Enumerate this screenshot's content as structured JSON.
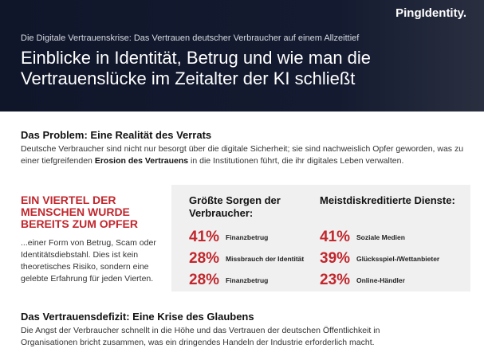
{
  "header": {
    "logo": "PingIdentity.",
    "subtitle": "Die Digitale Vertrauenskrise: Das Vertrauen deutscher Verbraucher auf einem Allzeittief",
    "title_lines": [
      "Einblicke in Identität, Betrug und wie man die",
      "Vertrauenslücke im Zeitalter der KI schließt"
    ]
  },
  "problem": {
    "heading": "Das Problem: Eine Realität des Verrats",
    "text_before": "Deutsche Verbraucher sind nicht nur besorgt über die digitale Sicherheit; sie sind nachweislich Opfer geworden, was zu einer tiefgreifenden ",
    "text_bold": "Erosion des Vertrauens",
    "text_after": " in die Institutionen führt, die ihr digitales Leben verwalten."
  },
  "callout": {
    "headline": "EIN VIERTEL DER MENSCHEN WURDE BEREITS ZUM OPFER",
    "text": "...einer Form von Betrug, Scam oder Identitätsdiebstahl. Dies ist kein theoretisches Risiko, sondern eine gelebte Erfahrung für jeden Vierten."
  },
  "stats": {
    "columns": [
      {
        "heading": "Größte Sorgen der Verbraucher:",
        "rows": [
          {
            "percent": "41%",
            "label": "Finanzbetrug"
          },
          {
            "percent": "28%",
            "label": "Missbrauch der Identität"
          },
          {
            "percent": "28%",
            "label": "Finanzbetrug"
          }
        ]
      },
      {
        "heading": "Meistdiskreditierte Dienste:",
        "rows": [
          {
            "percent": "41%",
            "label": "Soziale Medien"
          },
          {
            "percent": "39%",
            "label": "Glücksspiel-/Wettanbieter"
          },
          {
            "percent": "23%",
            "label": "Online-Händler"
          }
        ]
      }
    ]
  },
  "deficit": {
    "heading": "Das Vertrauensdefizit: Eine Krise des Glaubens",
    "text": "Die Angst der Verbraucher schnellt in die Höhe und das Vertrauen der deutschen Öffentlichkeit in Organisationen bricht zusammen, was ein dringendes Handeln der Industrie erforderlich macht."
  }
}
